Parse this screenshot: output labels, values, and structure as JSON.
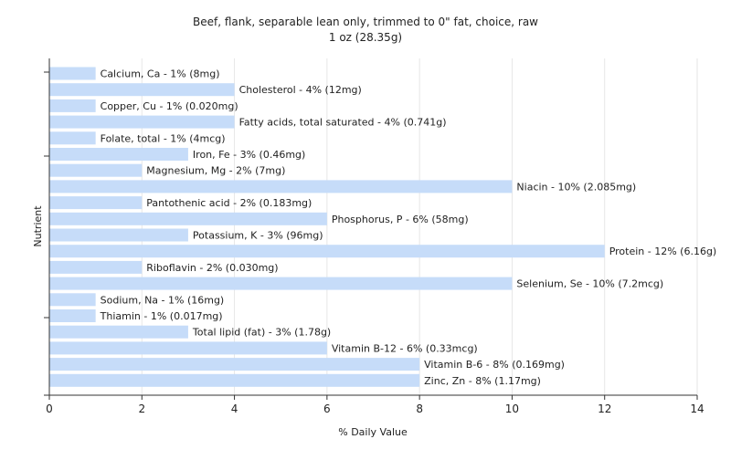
{
  "chart_data": {
    "type": "bar",
    "orientation": "horizontal",
    "title": "Beef, flank, separable lean only, trimmed to 0\" fat, choice, raw",
    "subtitle": "1 oz (28.35g)",
    "xlabel": "% Daily Value",
    "ylabel": "Nutrient",
    "xlim": [
      0,
      14
    ],
    "xticks": [
      "0",
      "2",
      "4",
      "6",
      "8",
      "10",
      "12",
      "14"
    ],
    "grid": true,
    "legend": "none",
    "categories": [
      "Calcium, Ca",
      "Cholesterol",
      "Copper, Cu",
      "Fatty acids, total saturated",
      "Folate, total",
      "Iron, Fe",
      "Magnesium, Mg",
      "Niacin",
      "Pantothenic acid",
      "Phosphorus, P",
      "Potassium, K",
      "Protein",
      "Riboflavin",
      "Selenium, Se",
      "Sodium, Na",
      "Thiamin",
      "Total lipid (fat)",
      "Vitamin B-12",
      "Vitamin B-6",
      "Zinc, Zn"
    ],
    "values": [
      1,
      4,
      1,
      4,
      1,
      3,
      2,
      10,
      2,
      6,
      3,
      12,
      2,
      10,
      1,
      1,
      3,
      6,
      8,
      8
    ],
    "bar_labels": [
      "Calcium, Ca - 1% (8mg)",
      "Cholesterol - 4% (12mg)",
      "Copper, Cu - 1% (0.020mg)",
      "Fatty acids, total saturated - 4% (0.741g)",
      "Folate, total - 1% (4mcg)",
      "Iron, Fe - 3% (0.46mg)",
      "Magnesium, Mg - 2% (7mg)",
      "Niacin - 10% (2.085mg)",
      "Pantothenic acid - 2% (0.183mg)",
      "Phosphorus, P - 6% (58mg)",
      "Potassium, K - 3% (96mg)",
      "Protein - 12% (6.16g)",
      "Riboflavin - 2% (0.030mg)",
      "Selenium, Se - 10% (7.2mcg)",
      "Sodium, Na - 1% (16mg)",
      "Thiamin - 1% (0.017mg)",
      "Total lipid (fat) - 3% (1.78g)",
      "Vitamin B-12 - 6% (0.33mcg)",
      "Vitamin B-6 - 8% (0.169mg)",
      "Zinc, Zn - 8% (1.17mg)"
    ],
    "colors": {
      "bar": "#c6dcf9",
      "grid": "#e6e6e6",
      "axis": "#333333",
      "text": "#222222"
    }
  }
}
